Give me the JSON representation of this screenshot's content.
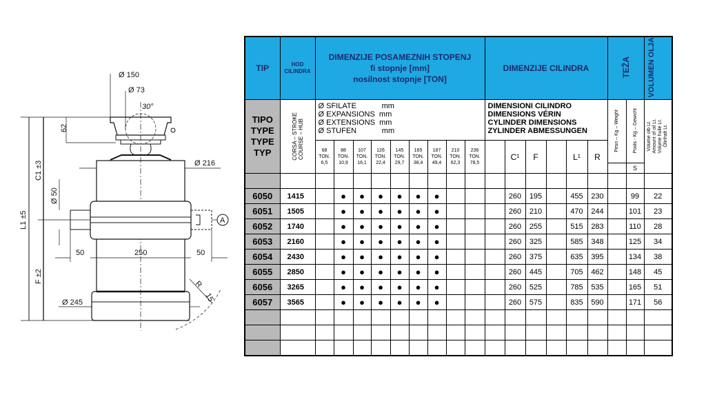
{
  "drawing": {
    "labels": {
      "d150": "Ø 150",
      "d73": "Ø 73",
      "angle": "30°",
      "h62": "62",
      "d216": "Ø 216",
      "d50": "Ø 50",
      "w50_left": "50",
      "w250": "250",
      "w50_right": "50",
      "c1": "C1  ±3",
      "l1": "L1  ±5",
      "f": "F  ±2",
      "d245": "Ø 245",
      "r": "R",
      "r15": "15",
      "a": "A"
    }
  },
  "table": {
    "header": {
      "tip": "TIP",
      "hod": "HOD CILINDRA",
      "stages_l1": "DIMENZIJE POSAMEZNIH STOPENJ",
      "stages_l2": "fi stopnje [mm]",
      "stages_l3": "nosilnost stopnje [TON]",
      "cylinder": "DIMENZIJE CILINDRA",
      "weight": "TEŽA",
      "volume": "VOLUMEN OLJA"
    },
    "subheader": {
      "type_lines": [
        "TIPO",
        "TYPE",
        "TYPE",
        "TYP"
      ],
      "stroke": "CORSA – STROKE",
      "stroke2": "COURSE – HUB",
      "stage_lines": [
        "Ø SFILATE            mm",
        "Ø EXPANSIONS  mm",
        "Ø EXTENSIONS  mm",
        "Ø STUFEN            mm"
      ],
      "cyl_lines": [
        "DIMENSIONI CILINDRO",
        "DIMENSIONS VÉRIN",
        "CYLINDER DIMENSIONS",
        "ZYLINDER ABMESSUNGEN"
      ],
      "weight1": "Peso – Kg – Weight",
      "weight2": "Poids - Kg – Gewicht",
      "weight_s": "S",
      "volume_lines": [
        "Volume olb Lt.",
        "Amount of oil Lt.",
        "Volume huile Lt.",
        "Ölinhalt Lt."
      ]
    },
    "stages": [
      {
        "dia": "68",
        "unit": "TON.",
        "load": "6,5"
      },
      {
        "dia": "88",
        "unit": "TON.",
        "load": "10,9"
      },
      {
        "dia": "107",
        "unit": "TON.",
        "load": "16,1"
      },
      {
        "dia": "126",
        "unit": "TON.",
        "load": "22,4"
      },
      {
        "dia": "145",
        "unit": "TON.",
        "load": "29,7"
      },
      {
        "dia": "165",
        "unit": "TON.",
        "load": "38,4"
      },
      {
        "dia": "187",
        "unit": "TON.",
        "load": "49,4"
      },
      {
        "dia": "210",
        "unit": "TON.",
        "load": "62,3"
      },
      {
        "dia": "236",
        "unit": "TON.",
        "load": "78,5"
      }
    ],
    "dim_columns": [
      "",
      "C¹",
      "F",
      "",
      "L¹",
      "R"
    ],
    "dot_symbol": "●",
    "rows": [
      {
        "tip": "6050",
        "hod": "1415",
        "stages": [
          0,
          1,
          1,
          1,
          1,
          1,
          1,
          0,
          0
        ],
        "dims": [
          "",
          "260",
          "195",
          "",
          "455",
          "230"
        ],
        "weight": [
          "",
          "99"
        ],
        "volume": "22"
      },
      {
        "tip": "6051",
        "hod": "1505",
        "stages": [
          0,
          1,
          1,
          1,
          1,
          1,
          1,
          0,
          0
        ],
        "dims": [
          "",
          "260",
          "210",
          "",
          "470",
          "244"
        ],
        "weight": [
          "",
          "101"
        ],
        "volume": "23"
      },
      {
        "tip": "6052",
        "hod": "1740",
        "stages": [
          0,
          1,
          1,
          1,
          1,
          1,
          1,
          0,
          0
        ],
        "dims": [
          "",
          "260",
          "255",
          "",
          "515",
          "283"
        ],
        "weight": [
          "",
          "110"
        ],
        "volume": "28"
      },
      {
        "tip": "6053",
        "hod": "2160",
        "stages": [
          0,
          1,
          1,
          1,
          1,
          1,
          1,
          0,
          0
        ],
        "dims": [
          "",
          "260",
          "325",
          "",
          "585",
          "348"
        ],
        "weight": [
          "",
          "125"
        ],
        "volume": "34"
      },
      {
        "tip": "6054",
        "hod": "2430",
        "stages": [
          0,
          1,
          1,
          1,
          1,
          1,
          1,
          0,
          0
        ],
        "dims": [
          "",
          "260",
          "375",
          "",
          "635",
          "395"
        ],
        "weight": [
          "",
          "134"
        ],
        "volume": "38"
      },
      {
        "tip": "6055",
        "hod": "2850",
        "stages": [
          0,
          1,
          1,
          1,
          1,
          1,
          1,
          0,
          0
        ],
        "dims": [
          "",
          "260",
          "445",
          "",
          "705",
          "462"
        ],
        "weight": [
          "",
          "148"
        ],
        "volume": "45"
      },
      {
        "tip": "6056",
        "hod": "3265",
        "stages": [
          0,
          1,
          1,
          1,
          1,
          1,
          1,
          0,
          0
        ],
        "dims": [
          "",
          "260",
          "525",
          "",
          "785",
          "535"
        ],
        "weight": [
          "",
          "165"
        ],
        "volume": "51"
      },
      {
        "tip": "6057",
        "hod": "3565",
        "stages": [
          0,
          1,
          1,
          1,
          1,
          1,
          1,
          0,
          0
        ],
        "dims": [
          "",
          "260",
          "575",
          "",
          "835",
          "590"
        ],
        "weight": [
          "",
          "171"
        ],
        "volume": "56"
      }
    ],
    "empty_rows_before": 1,
    "empty_rows_after": 3
  },
  "colors": {
    "header_blue": "#1fa9e3",
    "header_text": "#1b2a6b",
    "tip_gray": "#b9b9b9"
  }
}
